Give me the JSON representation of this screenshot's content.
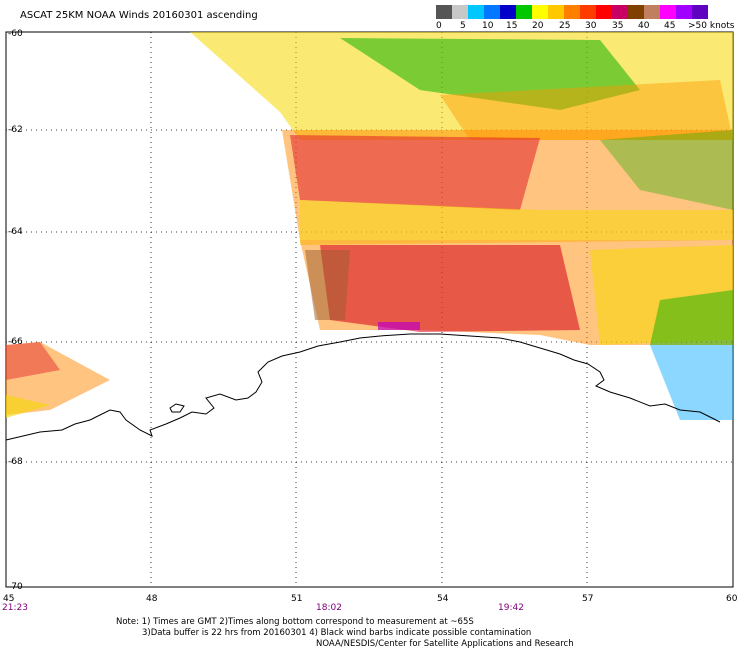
{
  "title": "ASCAT 25KM NOAA Winds 20160301 ascending",
  "legend": {
    "unit_label": ">50 knots",
    "ticks": [
      "0",
      "5",
      "10",
      "15",
      "20",
      "25",
      "30",
      "35",
      "40",
      "45"
    ],
    "colors": [
      "#555555",
      "#c8c8c8",
      "#00c8ff",
      "#0078ff",
      "#0000c8",
      "#00c800",
      "#ffff00",
      "#ffc800",
      "#ff8000",
      "#ff3c00",
      "#ff0000",
      "#c80064",
      "#804000",
      "#c08060",
      "#ff00ff",
      "#a000ff",
      "#6000c0"
    ]
  },
  "axes": {
    "lon_labels": [
      "45",
      "48",
      "51",
      "54",
      "57",
      "60"
    ],
    "lat_labels": [
      "-60",
      "-62",
      "-64",
      "-66",
      "-68",
      "-70"
    ]
  },
  "pass_times": [
    "21:23",
    "18:02",
    "19:42"
  ],
  "notes": [
    "Note: 1) Times are GMT 2)Times along bottom correspond to measurement at ~65S",
    "3)Data buffer is 22 hrs from 20160301 4) Black wind barbs indicate possible contamination",
    "NOAA/NESDIS/Center for Satellite Applications and Research"
  ]
}
